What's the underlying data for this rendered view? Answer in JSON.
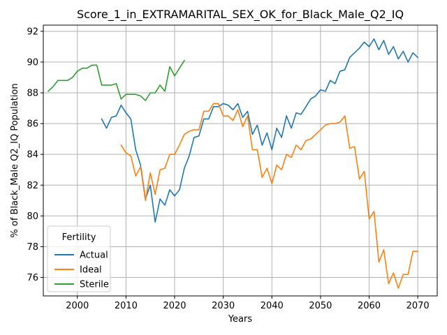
{
  "chart_data": {
    "type": "line",
    "title": "Score_1_in_EXTRAMARITAL_SEX_OK_for_Black_Male_Q2_IQ",
    "xlabel": "Years",
    "ylabel": "% of Black_Male Q2_IQ Population",
    "xlim": [
      1993,
      2074
    ],
    "ylim": [
      74.8,
      92.4
    ],
    "xticks": [
      2000,
      2010,
      2020,
      2030,
      2040,
      2050,
      2060,
      2070
    ],
    "yticks": [
      76,
      78,
      80,
      82,
      84,
      86,
      88,
      90,
      92
    ],
    "grid": true,
    "legend": {
      "title": "Fertility",
      "position": "lower-left"
    },
    "series": [
      {
        "name": "Actual",
        "color": "#1f77b4",
        "x": [
          2005,
          2006,
          2007,
          2008,
          2009,
          2010,
          2011,
          2012,
          2013,
          2014,
          2015,
          2016,
          2017,
          2018,
          2019,
          2020,
          2021,
          2022,
          2023,
          2024,
          2025,
          2026,
          2027,
          2028,
          2029,
          2030,
          2031,
          2032,
          2033,
          2034,
          2035,
          2036,
          2037,
          2038,
          2039,
          2040,
          2041,
          2042,
          2043,
          2044,
          2045,
          2046,
          2047,
          2048,
          2049,
          2050,
          2051,
          2052,
          2053,
          2054,
          2055,
          2056,
          2057,
          2058,
          2059,
          2060,
          2061,
          2062,
          2063,
          2064,
          2065,
          2066,
          2067,
          2068,
          2069,
          2070
        ],
        "values": [
          86.3,
          85.7,
          86.4,
          86.5,
          87.2,
          86.7,
          86.3,
          84.3,
          83.3,
          81.1,
          82.0,
          79.6,
          81.1,
          80.7,
          81.7,
          81.3,
          81.7,
          83.1,
          83.9,
          85.1,
          85.2,
          86.3,
          86.3,
          87.1,
          87.1,
          87.3,
          87.2,
          86.9,
          87.3,
          86.4,
          86.8,
          85.3,
          85.9,
          84.6,
          85.4,
          84.3,
          85.7,
          85.1,
          86.5,
          85.7,
          86.7,
          86.6,
          87.1,
          87.6,
          87.8,
          88.2,
          88.1,
          88.8,
          88.6,
          89.4,
          89.5,
          90.3,
          90.6,
          90.9,
          91.3,
          91.0,
          91.5,
          90.8,
          91.4,
          90.5,
          91.0,
          90.2,
          90.7,
          90.0,
          90.6,
          90.3
        ]
      },
      {
        "name": "Ideal",
        "color": "#ff7f0e",
        "x": [
          2009,
          2010,
          2011,
          2012,
          2013,
          2014,
          2015,
          2016,
          2017,
          2018,
          2019,
          2020,
          2021,
          2022,
          2023,
          2024,
          2025,
          2026,
          2027,
          2028,
          2029,
          2030,
          2031,
          2032,
          2033,
          2034,
          2035,
          2036,
          2037,
          2038,
          2039,
          2040,
          2041,
          2042,
          2043,
          2044,
          2045,
          2046,
          2047,
          2048,
          2049,
          2050,
          2051,
          2052,
          2053,
          2054,
          2055,
          2056,
          2057,
          2058,
          2059,
          2060,
          2061,
          2062,
          2063,
          2064,
          2065,
          2066,
          2067,
          2068,
          2069,
          2070
        ],
        "values": [
          84.6,
          84.1,
          83.9,
          82.6,
          83.2,
          81.0,
          82.8,
          81.4,
          83.0,
          83.1,
          84.0,
          84.0,
          84.6,
          85.3,
          85.5,
          85.6,
          85.6,
          86.8,
          86.8,
          87.3,
          87.3,
          86.5,
          86.5,
          86.2,
          86.9,
          85.8,
          86.5,
          84.3,
          84.3,
          82.5,
          83.1,
          82.1,
          83.3,
          83.0,
          84.0,
          83.8,
          84.6,
          84.3,
          84.9,
          85.0,
          85.3,
          85.6,
          85.9,
          86.0,
          86.0,
          86.1,
          86.5,
          84.4,
          84.5,
          82.4,
          82.9,
          79.8,
          80.3,
          77.0,
          77.8,
          75.6,
          76.3,
          75.3,
          76.2,
          76.2,
          77.7,
          77.7
        ]
      },
      {
        "name": "Sterile",
        "color": "#2ca02c",
        "x": [
          1994,
          1995,
          1996,
          1997,
          1998,
          1999,
          2000,
          2001,
          2002,
          2003,
          2004,
          2005,
          2006,
          2007,
          2008,
          2009,
          2010,
          2011,
          2012,
          2013,
          2014,
          2015,
          2016,
          2017,
          2018,
          2019,
          2020,
          2021,
          2022
        ],
        "values": [
          88.1,
          88.4,
          88.8,
          88.8,
          88.8,
          89.0,
          89.4,
          89.6,
          89.6,
          89.8,
          89.8,
          88.5,
          88.5,
          88.5,
          88.6,
          87.6,
          87.9,
          87.9,
          87.9,
          87.8,
          87.5,
          88.0,
          88.0,
          88.5,
          88.1,
          89.7,
          89.1,
          89.6,
          90.1
        ]
      }
    ]
  }
}
